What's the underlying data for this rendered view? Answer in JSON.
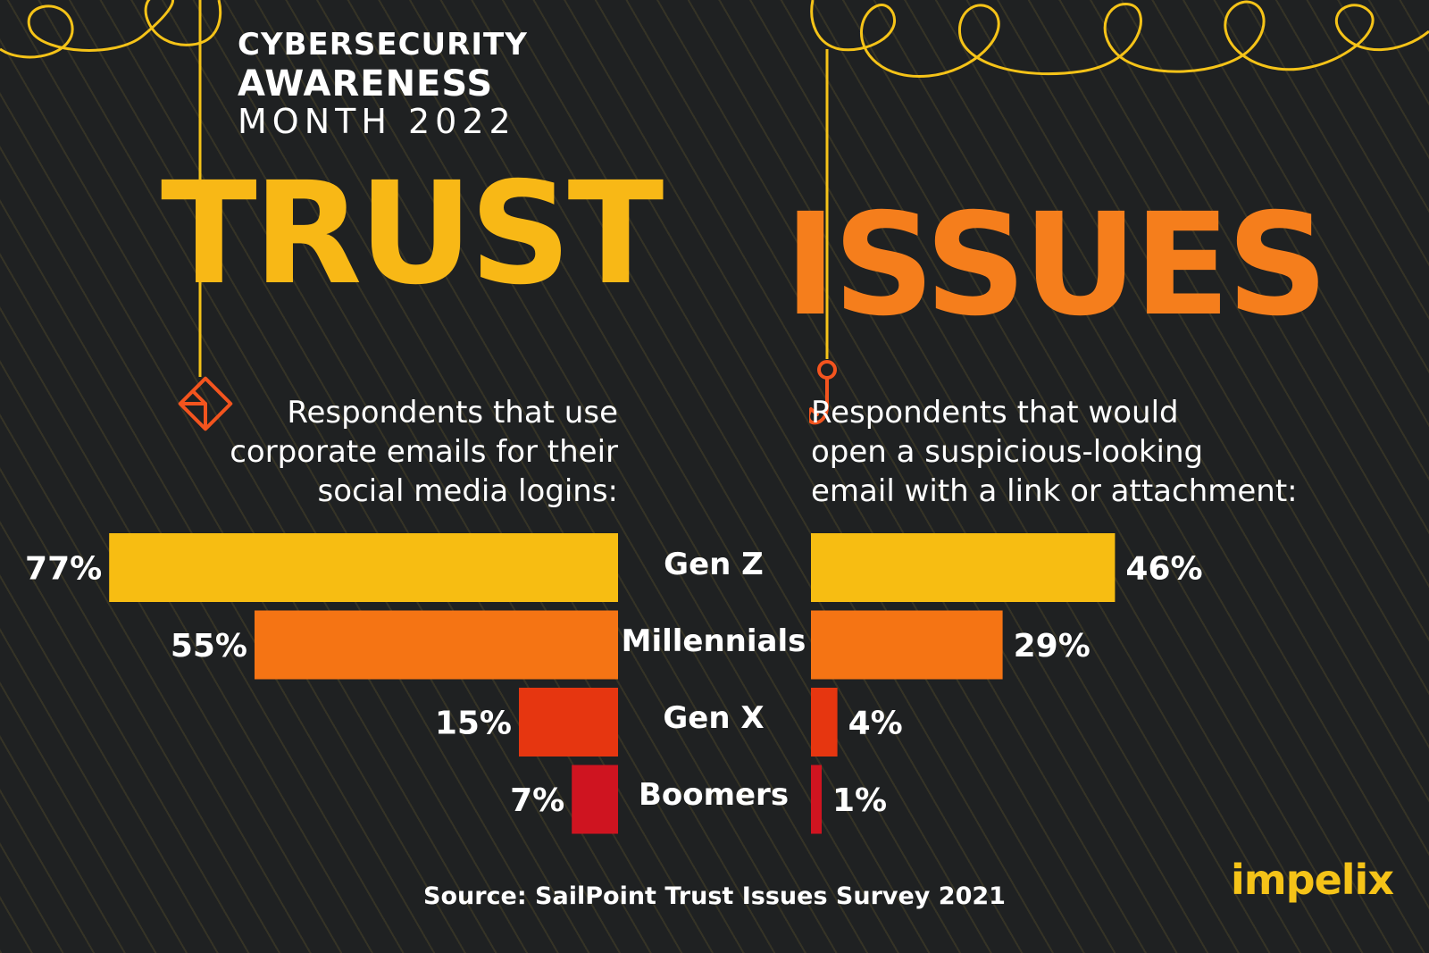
{
  "header": {
    "line1": "CYBERSECURITY",
    "line2": "AWARENESS",
    "line3": "MONTH 2022"
  },
  "headline": {
    "word1": "TRUST",
    "word2": "ISSUES"
  },
  "left_panel": {
    "icon": "envelope-icon",
    "desc_lines": [
      "Respondents that use",
      "corporate emails for their",
      "social media logins:"
    ]
  },
  "right_panel": {
    "icon": "fishing-hook-icon",
    "desc_lines": [
      "Respondents that would",
      "open a suspicious-looking",
      "email with a link or attachment:"
    ]
  },
  "source": "Source: SailPoint Trust Issues Survey 2021",
  "brand": "impelix",
  "colors": {
    "gen_z": "#f7bd12",
    "millennials": "#f57414",
    "gen_x": "#e63610",
    "boomers": "#cf1420",
    "accent_yellow": "#f5c318",
    "accent_orange": "#f3541e"
  },
  "chart_data": [
    {
      "type": "bar",
      "orientation": "horizontal",
      "categories": [
        "Gen Z",
        "Millennials",
        "Gen X",
        "Boomers"
      ],
      "values": [
        77,
        55,
        15,
        7
      ],
      "labels": [
        "77%",
        "55%",
        "15%",
        "7%"
      ],
      "title": "Respondents that use corporate emails for their social media logins:"
    },
    {
      "type": "bar",
      "orientation": "horizontal",
      "categories": [
        "Gen Z",
        "Millennials",
        "Gen X",
        "Boomers"
      ],
      "values": [
        46,
        29,
        4,
        1
      ],
      "labels": [
        "46%",
        "29%",
        "4%",
        "1%"
      ],
      "title": "Respondents that would open a suspicious-looking email with a link or attachment:"
    }
  ]
}
